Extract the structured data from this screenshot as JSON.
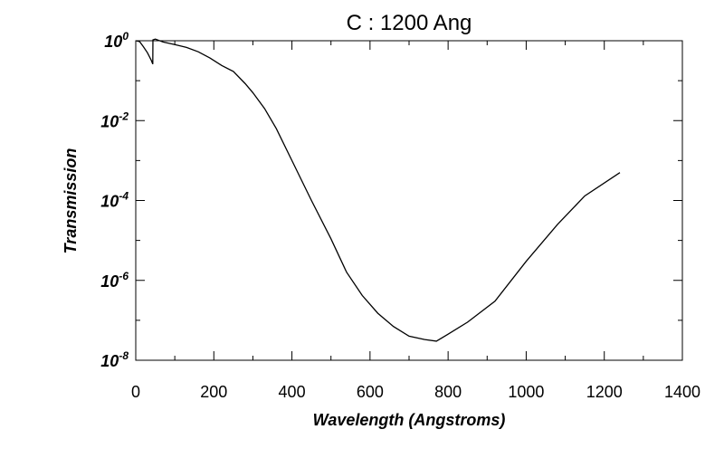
{
  "chart_data": {
    "type": "line",
    "title": "C : 1200 Ang",
    "xlabel": "Wavelength (Angstroms)",
    "ylabel": "Transmission",
    "xlim": [
      0,
      1400
    ],
    "ylim": [
      1e-08,
      1
    ],
    "yscale": "log",
    "grid": false,
    "legend": "none",
    "line_color": "#000000",
    "x_ticks": [
      0,
      200,
      400,
      600,
      800,
      1000,
      1200,
      1400
    ],
    "y_ticks": [
      {
        "base": "10",
        "exp": "0",
        "value": 1
      },
      {
        "base": "10",
        "exp": "-2",
        "value": 0.01
      },
      {
        "base": "10",
        "exp": "-4",
        "value": 0.0001
      },
      {
        "base": "10",
        "exp": "-6",
        "value": 1e-06
      },
      {
        "base": "10",
        "exp": "-8",
        "value": 1e-08
      }
    ],
    "series": [
      {
        "x": [
          1,
          10,
          20,
          30,
          40,
          43.6,
          44,
          50,
          70,
          100,
          130,
          160,
          190,
          220,
          250,
          280,
          300,
          330,
          360,
          400,
          450,
          500,
          540,
          580,
          620,
          660,
          700,
          740,
          770,
          800,
          850,
          920,
          1000,
          1080,
          1150,
          1240
        ],
        "y": [
          1.0,
          0.95,
          0.7,
          0.5,
          0.32,
          0.26,
          1.05,
          1.1,
          0.93,
          0.8,
          0.68,
          0.53,
          0.37,
          0.24,
          0.17,
          0.085,
          0.05,
          0.02,
          0.0063,
          0.001,
          0.0001,
          1.1e-05,
          1.6e-06,
          4.2e-07,
          1.5e-07,
          7e-08,
          4e-08,
          3.3e-08,
          3e-08,
          4.5e-08,
          9e-08,
          3e-07,
          3e-06,
          2.5e-05,
          0.00013,
          0.0005
        ]
      }
    ]
  }
}
